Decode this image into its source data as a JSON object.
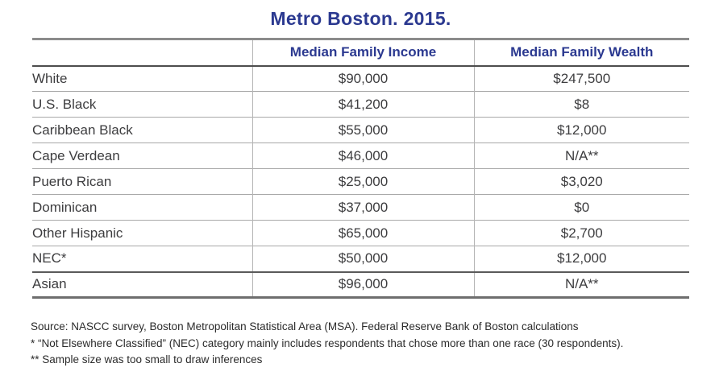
{
  "title": "Metro Boston. 2015.",
  "colors": {
    "accent_blue": "#2b3990",
    "body_text": "#3d3d3f",
    "rule_light": "#a8a8a8",
    "rule_dark": "#4d4d4d"
  },
  "table": {
    "columns": [
      "",
      "Median Family Income",
      "Median Family Wealth"
    ],
    "rows": [
      {
        "group": "White",
        "income": "$90,000",
        "wealth": "$247,500"
      },
      {
        "group": "U.S. Black",
        "income": "$41,200",
        "wealth": "$8"
      },
      {
        "group": "Caribbean Black",
        "income": "$55,000",
        "wealth": "$12,000"
      },
      {
        "group": "Cape Verdean",
        "income": "$46,000",
        "wealth": "N/A**"
      },
      {
        "group": "Puerto Rican",
        "income": "$25,000",
        "wealth": "$3,020"
      },
      {
        "group": "Dominican",
        "income": "$37,000",
        "wealth": "$0"
      },
      {
        "group": "Other Hispanic",
        "income": "$65,000",
        "wealth": "$2,700"
      },
      {
        "group": "NEC*",
        "income": "$50,000",
        "wealth": "$12,000"
      },
      {
        "group": "Asian",
        "income": "$96,000",
        "wealth": "N/A**"
      }
    ]
  },
  "footnotes": [
    "Source: NASCC survey, Boston Metropolitan Statistical Area (MSA). Federal Reserve Bank of Boston calculations",
    "* “Not Elsewhere Classified” (NEC) category mainly includes respondents that chose more than one race (30 respondents).",
    "** Sample size was too small to draw inferences"
  ]
}
